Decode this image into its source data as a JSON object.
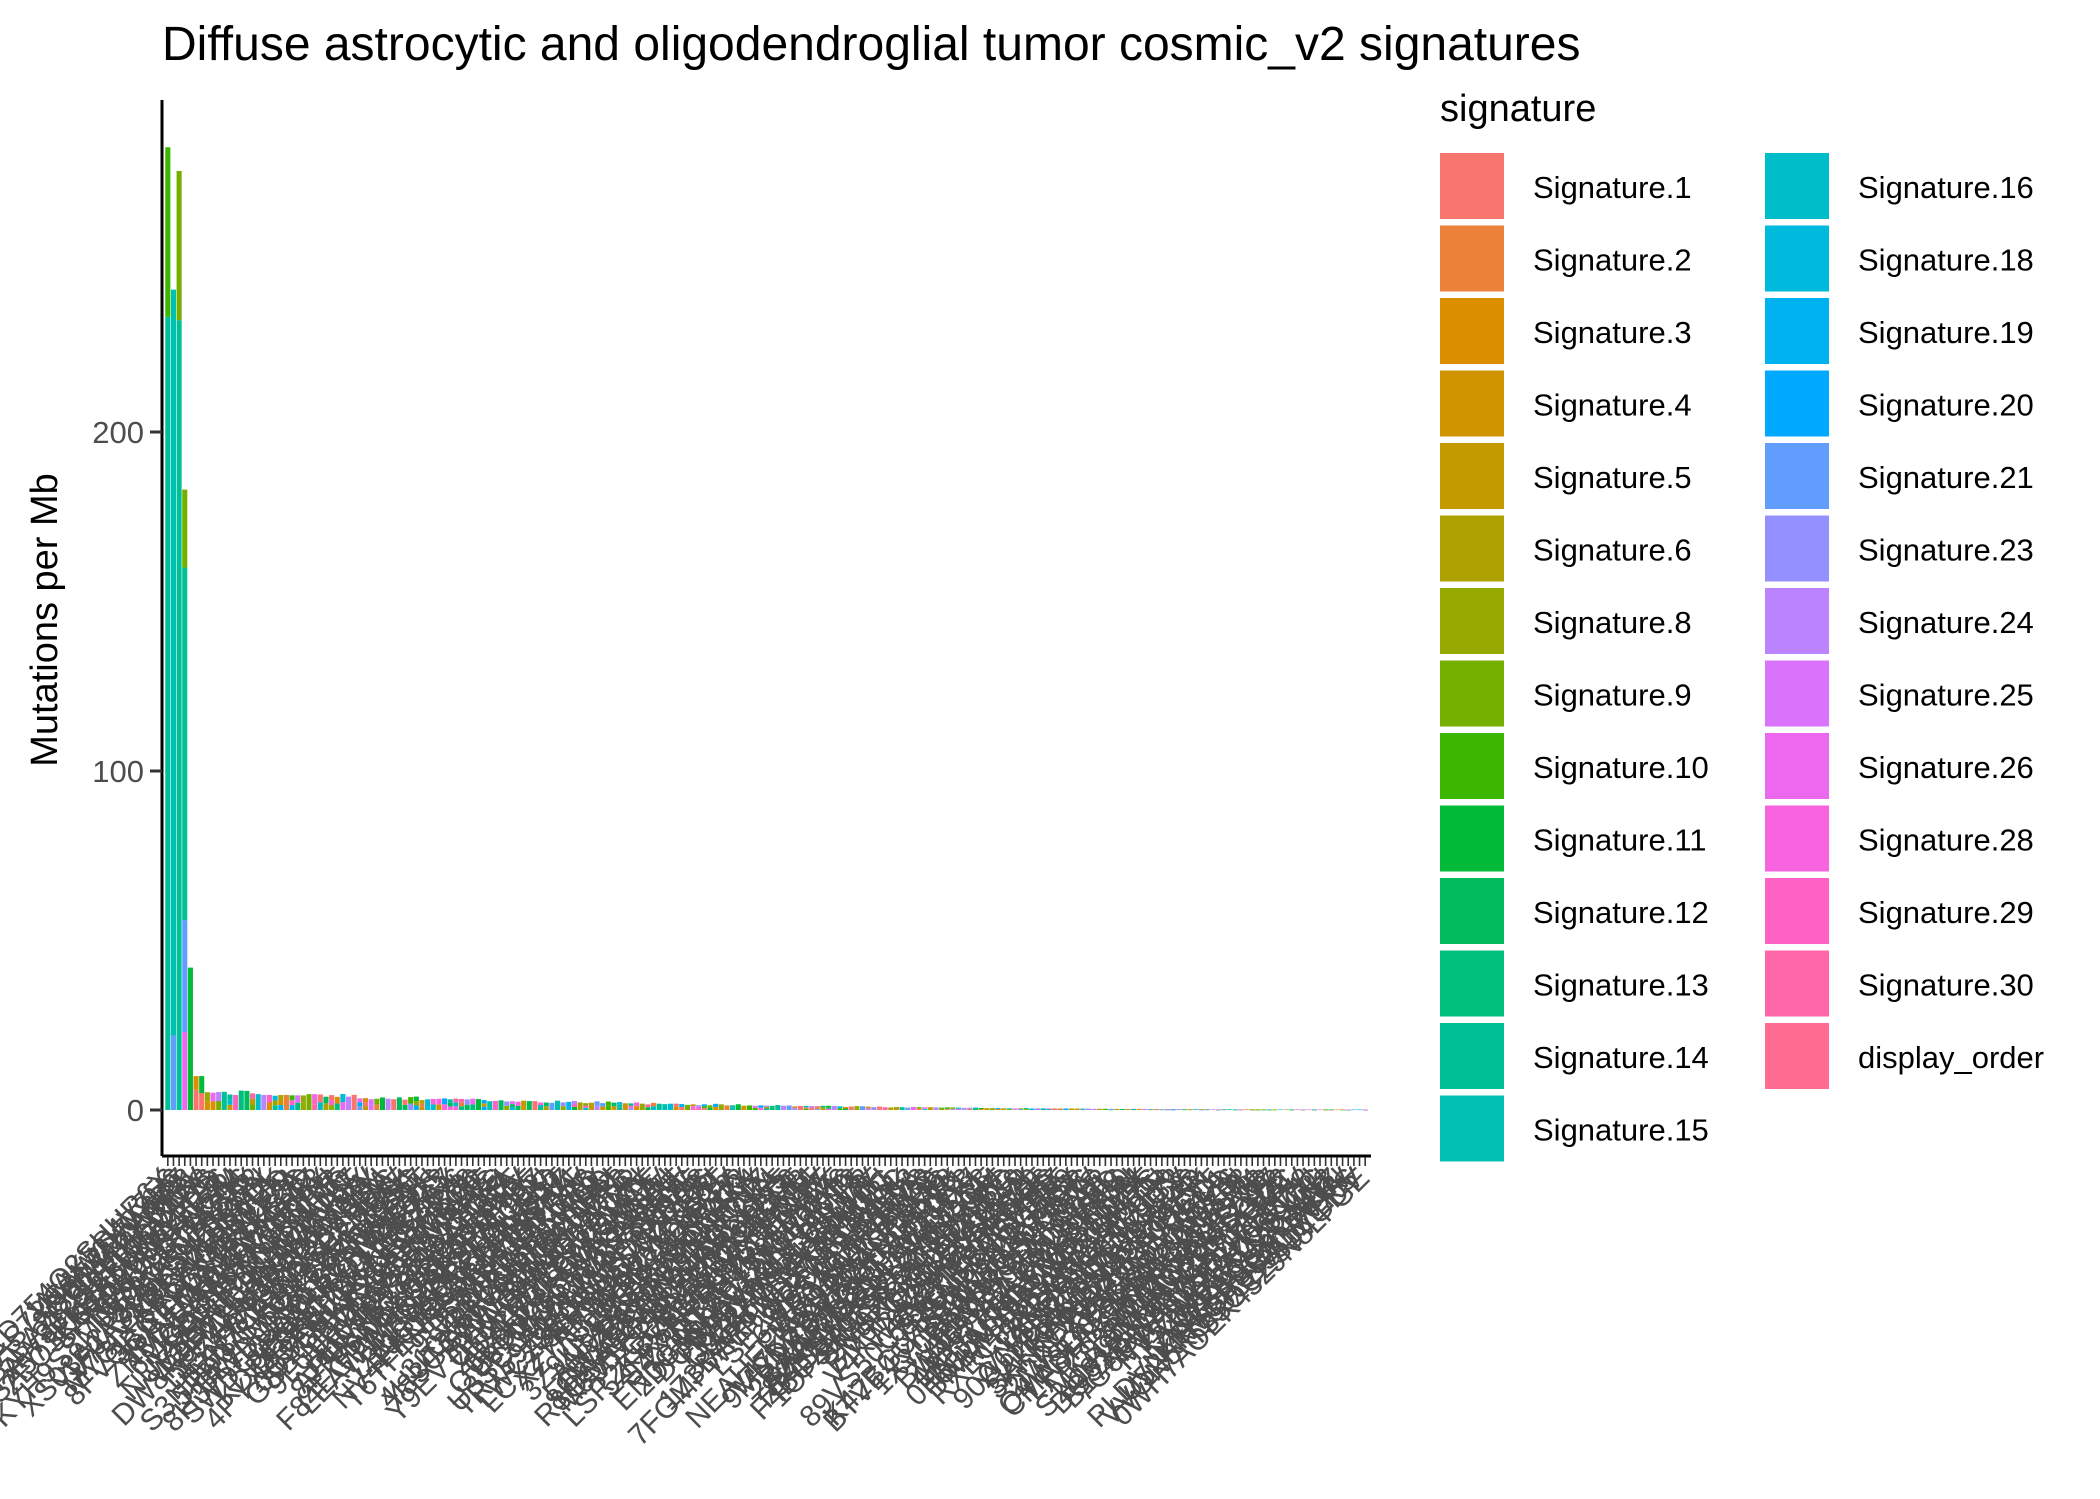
{
  "chart_data": {
    "type": "bar",
    "stacked": true,
    "title": "Diffuse astrocytic and oligodendroglial tumor cosmic_v2 signatures",
    "xlabel": "",
    "ylabel": "Mutations per Mb",
    "ylim": [
      0,
      285
    ],
    "yticks": [
      0,
      100,
      200
    ],
    "grid": false,
    "legend": {
      "title": "signature",
      "position": "right",
      "items": [
        {
          "name": "Signature.1",
          "color": "#F8766D"
        },
        {
          "name": "Signature.2",
          "color": "#EC8239"
        },
        {
          "name": "Signature.3",
          "color": "#DB8E00"
        },
        {
          "name": "Signature.4",
          "color": "#D09400"
        },
        {
          "name": "Signature.5",
          "color": "#C39A00"
        },
        {
          "name": "Signature.6",
          "color": "#AEA200"
        },
        {
          "name": "Signature.8",
          "color": "#96A900"
        },
        {
          "name": "Signature.9",
          "color": "#75AF00"
        },
        {
          "name": "Signature.10",
          "color": "#3DB600"
        },
        {
          "name": "Signature.11",
          "color": "#00BA38"
        },
        {
          "name": "Signature.12",
          "color": "#00BC5F"
        },
        {
          "name": "Signature.13",
          "color": "#00BF7D"
        },
        {
          "name": "Signature.14",
          "color": "#00C097"
        },
        {
          "name": "Signature.15",
          "color": "#00C0B2"
        },
        {
          "name": "Signature.16",
          "color": "#00BEC9"
        },
        {
          "name": "Signature.18",
          "color": "#00BADE"
        },
        {
          "name": "Signature.19",
          "color": "#00B3F0"
        },
        {
          "name": "Signature.20",
          "color": "#00A8FF"
        },
        {
          "name": "Signature.21",
          "color": "#619CFF"
        },
        {
          "name": "Signature.23",
          "color": "#9590FF"
        },
        {
          "name": "Signature.24",
          "color": "#BB83FF"
        },
        {
          "name": "Signature.25",
          "color": "#D973FC"
        },
        {
          "name": "Signature.26",
          "color": "#EC69EF"
        },
        {
          "name": "Signature.28",
          "color": "#F863DF"
        },
        {
          "name": "Signature.29",
          "color": "#FF62C5"
        },
        {
          "name": "Signature.30",
          "color": "#FF66A8"
        },
        {
          "name": "display_order",
          "color": "#FF6C91"
        }
      ]
    },
    "top_samples": [
      {
        "label": "",
        "segments": [
          {
            "signature": "Signature.14",
            "value": 234
          },
          {
            "signature": "Signature.10",
            "value": 50
          }
        ]
      },
      {
        "label": "",
        "segments": [
          {
            "signature": "Signature.21",
            "value": 22
          },
          {
            "signature": "Signature.15",
            "value": 220
          }
        ]
      },
      {
        "label": "",
        "segments": [
          {
            "signature": "Signature.14",
            "value": 233
          },
          {
            "signature": "Signature.9",
            "value": 44
          }
        ]
      },
      {
        "label": "",
        "segments": [
          {
            "signature": "Signature.26",
            "value": 23
          },
          {
            "signature": "Signature.21",
            "value": 33
          },
          {
            "signature": "Signature.14",
            "value": 104
          },
          {
            "signature": "Signature.9",
            "value": 23
          }
        ]
      },
      {
        "label": "",
        "segments": [
          {
            "signature": "Signature.11",
            "value": 42
          }
        ]
      },
      {
        "label": "",
        "segments": [
          {
            "signature": "Signature.1",
            "value": 6
          },
          {
            "signature": "Signature.3",
            "value": 4
          }
        ]
      },
      {
        "label": "",
        "segments": [
          {
            "signature": "Signature.1",
            "value": 5
          },
          {
            "signature": "Signature.11",
            "value": 5
          }
        ]
      }
    ],
    "sample_count": 213,
    "tail_values_range": [
      0,
      6
    ],
    "x_tick_labels_legible": false
  }
}
